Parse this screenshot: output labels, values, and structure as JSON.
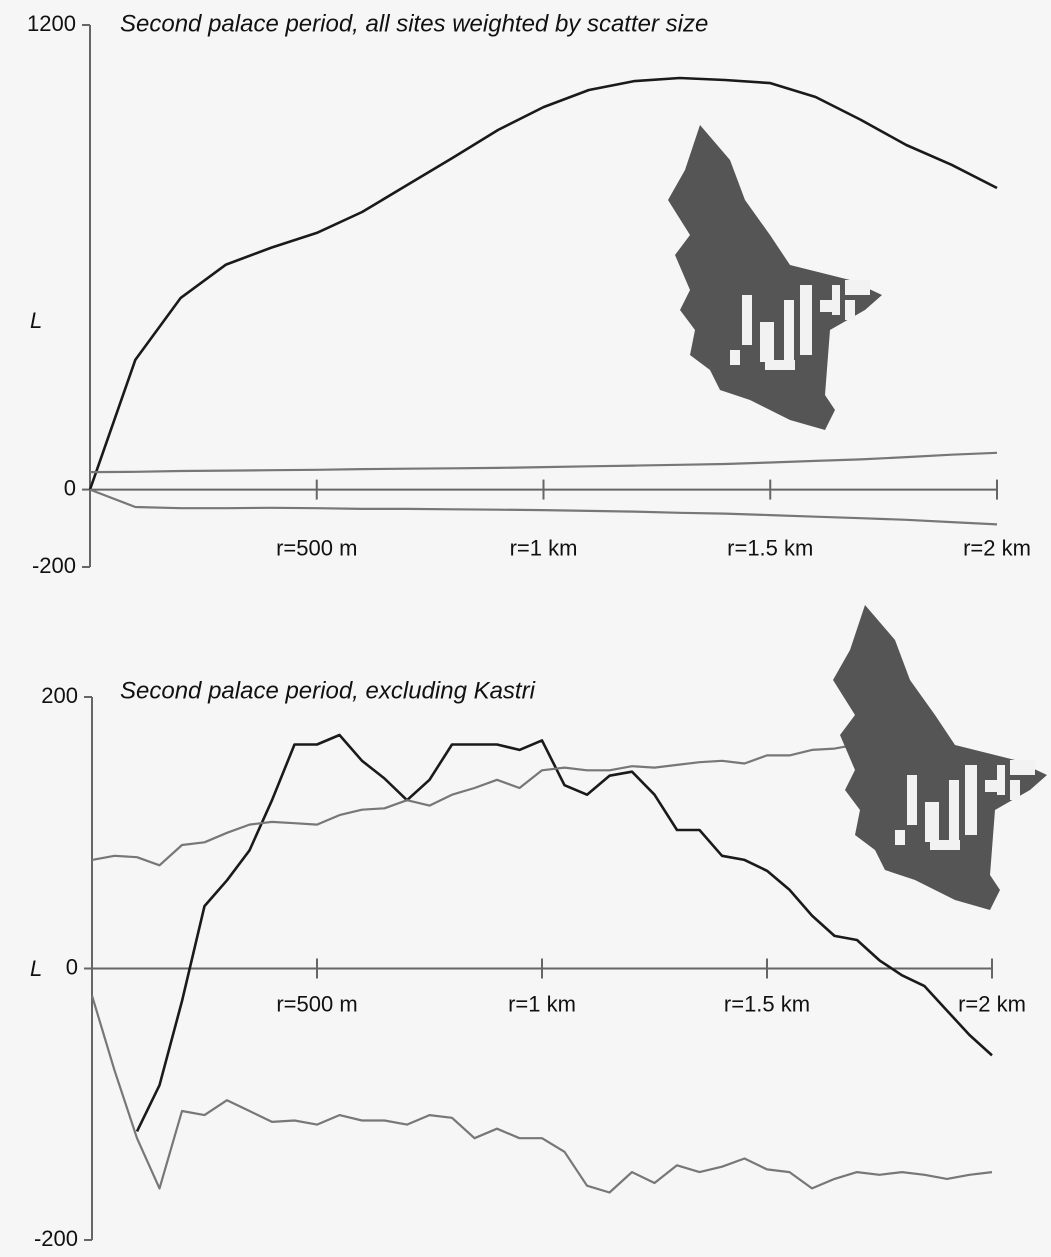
{
  "chart_data": [
    {
      "type": "line",
      "title": "Second palace period, all sites weighted by scatter size",
      "y_label": "L",
      "x": [
        0,
        100,
        200,
        300,
        400,
        500,
        600,
        700,
        800,
        900,
        1000,
        1100,
        1200,
        1300,
        1400,
        1500,
        1600,
        1700,
        1800,
        1900,
        2000
      ],
      "series": [
        {
          "color": "#1a1a1a",
          "values": [
            0,
            335,
            495,
            581,
            625,
            663,
            717,
            787,
            857,
            929,
            988,
            1032,
            1055,
            1063,
            1058,
            1050,
            1014,
            955,
            890,
            839,
            779
          ]
        },
        {
          "color": "#777777",
          "values": [
            45,
            46,
            48,
            49,
            50,
            51,
            53,
            54,
            55,
            56,
            58,
            60,
            62,
            64,
            66,
            70,
            74,
            78,
            84,
            90,
            95
          ]
        },
        {
          "color": "#777777",
          "values": [
            0,
            -45,
            -48,
            -48,
            -47,
            -48,
            -50,
            -50,
            -51,
            -52,
            -53,
            -55,
            -57,
            -60,
            -62,
            -66,
            -70,
            -74,
            -78,
            -84,
            -90
          ]
        }
      ],
      "xlim": [
        0,
        2000
      ],
      "xticks": [
        {
          "value": 500,
          "label": "r=500 m"
        },
        {
          "value": 1000,
          "label": "r=1 km"
        },
        {
          "value": 1500,
          "label": "r=1.5 km"
        },
        {
          "value": 2000,
          "label": "r=2 km"
        }
      ],
      "ylim": [
        -200,
        1200
      ],
      "yticks": [
        -200,
        0,
        1200
      ],
      "grid": false
    },
    {
      "type": "line",
      "title": "Second palace period, excluding Kastri",
      "y_label": "L",
      "x": [
        0,
        50,
        100,
        150,
        200,
        250,
        300,
        350,
        400,
        450,
        500,
        550,
        600,
        650,
        700,
        750,
        800,
        850,
        900,
        950,
        1000,
        1050,
        1100,
        1150,
        1200,
        1250,
        1300,
        1350,
        1400,
        1450,
        1500,
        1550,
        1600,
        1650,
        1700,
        1750,
        1800,
        1850,
        1900,
        1950,
        2000
      ],
      "series": [
        {
          "color": "#1a1a1a",
          "values": [
            null,
            null,
            -120,
            -86,
            -24,
            46,
            65,
            87,
            124,
            165,
            165,
            172,
            153,
            140,
            124,
            139,
            165,
            165,
            165,
            161,
            168,
            135,
            128,
            142,
            145,
            128,
            102,
            102,
            83,
            80,
            72,
            58,
            39,
            24,
            21,
            6,
            -5,
            -13,
            -31,
            -49,
            -64
          ]
        },
        {
          "color": "#777777",
          "values": [
            80,
            83,
            82,
            76,
            91,
            93,
            100,
            106,
            108,
            107,
            106,
            113,
            117,
            118,
            124,
            120,
            128,
            133,
            139,
            133,
            146,
            148,
            146,
            146,
            149,
            148,
            150,
            152,
            153,
            151,
            157,
            157,
            161,
            162,
            165,
            null,
            null,
            null,
            null,
            null,
            null
          ]
        },
        {
          "color": "#777777",
          "values": [
            -20,
            -75,
            -125,
            -162,
            -105,
            -108,
            -97,
            -105,
            -113,
            -112,
            -115,
            -108,
            -112,
            -112,
            -115,
            -108,
            -110,
            -125,
            -118,
            -125,
            -125,
            -135,
            -160,
            -165,
            -150,
            -158,
            -145,
            -150,
            -146,
            -140,
            -148,
            -150,
            -162,
            -155,
            -150,
            -152,
            -150,
            -152,
            -155,
            -152,
            -150
          ]
        }
      ],
      "xlim": [
        0,
        2000
      ],
      "xticks": [
        {
          "value": 500,
          "label": "r=500 m"
        },
        {
          "value": 1000,
          "label": "r=1 km"
        },
        {
          "value": 1500,
          "label": "r=1.5 km"
        },
        {
          "value": 2000,
          "label": "r=2 km"
        }
      ],
      "ylim": [
        -200,
        200
      ],
      "yticks": [
        -200,
        0,
        200
      ],
      "grid": false
    }
  ]
}
